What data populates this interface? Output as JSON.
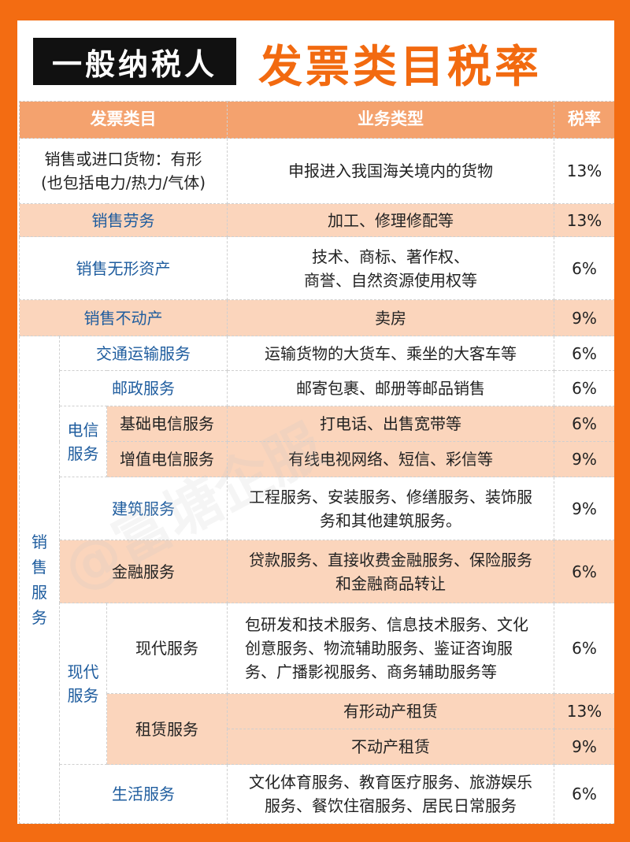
{
  "title": {
    "black": "一般纳税人",
    "orange": "发票类目税率"
  },
  "watermark": "@富塘企服",
  "header": [
    "发票类目",
    "业务类型",
    "税率"
  ],
  "rows": [
    {
      "category": "销售或进口货物：有形\n(也包括电力/热力/气体)",
      "business": "申报进入我国海关境内的货物",
      "rate": "13%"
    },
    {
      "category": "销售劳务",
      "business": "加工、修理修配等",
      "rate": "13%"
    },
    {
      "category": "销售无形资产",
      "business": "技术、商标、著作权、\n商誉、自然资源使用权等",
      "rate": "6%"
    },
    {
      "category": "销售不动产",
      "business": "卖房",
      "rate": "9%"
    }
  ],
  "services": {
    "label": "销售服务",
    "groups": {
      "telecom": "电信服务",
      "modern": "现代服务"
    },
    "rows": [
      {
        "category": "交通运输服务",
        "business": "运输货物的大货车、乘坐的大客车等",
        "rate": "6%"
      },
      {
        "category": "邮政服务",
        "business": "邮寄包裹、邮册等邮品销售",
        "rate": "6%"
      },
      {
        "category": "基础电信服务",
        "business": "打电话、出售宽带等",
        "rate": "6%"
      },
      {
        "category": "增值电信服务",
        "business": "有线电视网络、短信、彩信等",
        "rate": "9%"
      },
      {
        "category": "建筑服务",
        "business": "工程服务、安装服务、修缮服务、装饰服务和其他建筑服务。",
        "rate": "9%"
      },
      {
        "category": "金融服务",
        "business": "贷款服务、直接收费金融服务、保险服务和金融商品转让",
        "rate": "6%"
      },
      {
        "category": "现代服务",
        "business": "包研发和技术服务、信息技术服务、文化创意服务、物流辅助服务、鉴证咨询服务、广播影视服务、商务辅助服务等",
        "rate": "6%"
      },
      {
        "category": "租赁服务",
        "items": [
          {
            "business": "有形动产租赁",
            "rate": "13%"
          },
          {
            "business": "不动产租赁",
            "rate": "9%"
          }
        ]
      },
      {
        "category": "生活服务",
        "business": "文化体育服务、教育医疗服务、旅游娱乐服务、餐饮住宿服务、居民日常服务",
        "rate": "6%"
      }
    ]
  }
}
